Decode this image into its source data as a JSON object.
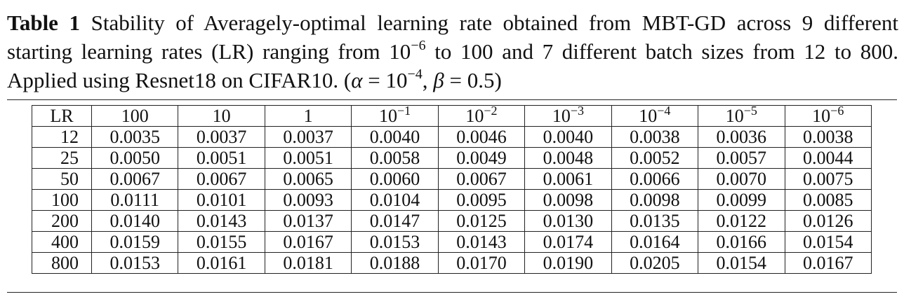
{
  "caption": {
    "label": "Table 1",
    "text_part1": "Stability of Averagely-optimal learning rate obtained from MBT-GD across 9 different starting learning rates (LR) ranging from 10",
    "exp1": "−6",
    "text_part2": " to 100 and 7 different batch sizes from 12 to 800. Applied using Resnet18 on CIFAR10. (",
    "alpha_sym": "α",
    "alpha_eq": " = 10",
    "alpha_exp": "−4",
    "comma": ", ",
    "beta_sym": "β",
    "beta_eq": " = 0.5)"
  },
  "table": {
    "corner_label": "LR",
    "columns": [
      {
        "base": "100",
        "exp": ""
      },
      {
        "base": "10",
        "exp": ""
      },
      {
        "base": "1",
        "exp": ""
      },
      {
        "base": "10",
        "exp": "−1"
      },
      {
        "base": "10",
        "exp": "−2"
      },
      {
        "base": "10",
        "exp": "−3"
      },
      {
        "base": "10",
        "exp": "−4"
      },
      {
        "base": "10",
        "exp": "−5"
      },
      {
        "base": "10",
        "exp": "−6"
      }
    ],
    "rows": [
      {
        "batch": "12",
        "values": [
          "0.0035",
          "0.0037",
          "0.0037",
          "0.0040",
          "0.0046",
          "0.0040",
          "0.0038",
          "0.0036",
          "0.0038"
        ]
      },
      {
        "batch": "25",
        "values": [
          "0.0050",
          "0.0051",
          "0.0051",
          "0.0058",
          "0.0049",
          "0.0048",
          "0.0052",
          "0.0057",
          "0.0044"
        ]
      },
      {
        "batch": "50",
        "values": [
          "0.0067",
          "0.0067",
          "0.0065",
          "0.0060",
          "0.0067",
          "0.0061",
          "0.0066",
          "0.0070",
          "0.0075"
        ]
      },
      {
        "batch": "100",
        "values": [
          "0.0111",
          "0.0101",
          "0.0093",
          "0.0104",
          "0.0095",
          "0.0098",
          "0.0098",
          "0.0099",
          "0.0085"
        ]
      },
      {
        "batch": "200",
        "values": [
          "0.0140",
          "0.0143",
          "0.0137",
          "0.0147",
          "0.0125",
          "0.0130",
          "0.0135",
          "0.0122",
          "0.0126"
        ]
      },
      {
        "batch": "400",
        "values": [
          "0.0159",
          "0.0155",
          "0.0167",
          "0.0153",
          "0.0143",
          "0.0174",
          "0.0164",
          "0.0166",
          "0.0154"
        ]
      },
      {
        "batch": "800",
        "values": [
          "0.0153",
          "0.0161",
          "0.0181",
          "0.0188",
          "0.0170",
          "0.0190",
          "0.0205",
          "0.0154",
          "0.0167"
        ]
      }
    ]
  }
}
